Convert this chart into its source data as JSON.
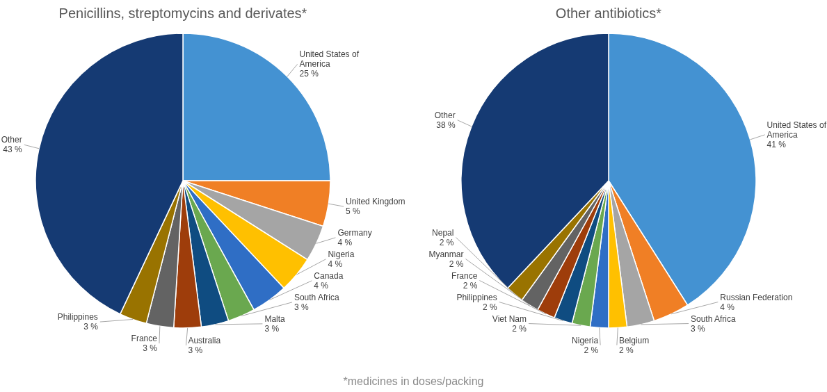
{
  "chart_data": [
    {
      "type": "pie",
      "title": "Penicillins, streptomycins and derivates*",
      "categories": [
        "United States of America",
        "United Kingdom",
        "Germany",
        "Nigeria",
        "Canada",
        "South Africa",
        "Malta",
        "Australia",
        "France",
        "Philippines",
        "Other"
      ],
      "values": [
        25,
        5,
        4,
        4,
        4,
        3,
        3,
        3,
        3,
        3,
        43
      ],
      "colors": [
        "#4492d2",
        "#f07f25",
        "#a5a5a5",
        "#ffc000",
        "#2f6ec5",
        "#6aa84f",
        "#0f4c81",
        "#9e3d0b",
        "#636363",
        "#997300",
        "#153a73"
      ],
      "value_labels": [
        "25 %",
        "5 %",
        "4 %",
        "4 %",
        "4 %",
        "3 %",
        "3 %",
        "3 %",
        "3 %",
        "3 %",
        "43 %"
      ]
    },
    {
      "type": "pie",
      "title": "Other antibiotics*",
      "categories": [
        "United States of America",
        "Russian Federation",
        "South Africa",
        "Belgium",
        "Nigeria",
        "Viet Nam",
        "Philippines",
        "France",
        "Myanmar",
        "Nepal",
        "Other"
      ],
      "values": [
        41,
        4,
        3,
        2,
        2,
        2,
        2,
        2,
        2,
        2,
        38
      ],
      "colors": [
        "#4492d2",
        "#f07f25",
        "#a5a5a5",
        "#ffc000",
        "#2f6ec5",
        "#6aa84f",
        "#0f4c81",
        "#9e3d0b",
        "#636363",
        "#997300",
        "#153a73"
      ],
      "value_labels": [
        "41 %",
        "4 %",
        "3 %",
        "2 %",
        "2 %",
        "2 %",
        "2 %",
        "2 %",
        "2 %",
        "2 %",
        "38 %"
      ],
      "annotations": [
        "*medicines in doses/packing"
      ]
    }
  ]
}
